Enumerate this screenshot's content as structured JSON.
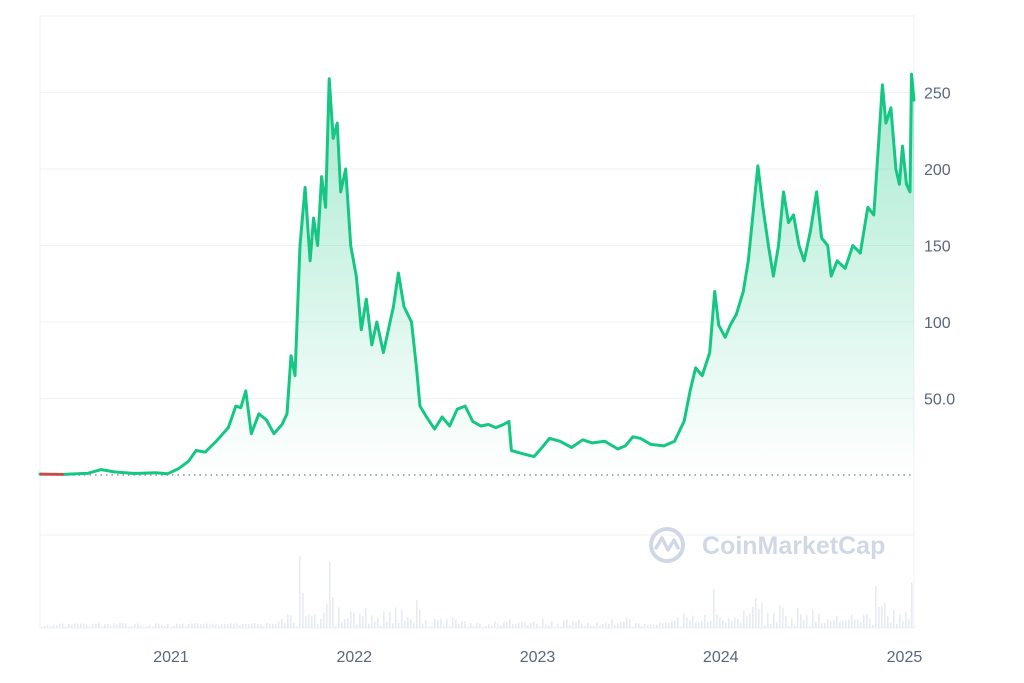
{
  "watermark": {
    "text": "CoinMarketCap"
  },
  "colors": {
    "line": "#16c784",
    "baseline_line": "#ea3943",
    "grid": "#eff2f5",
    "axis_text": "#58667e",
    "volume": "#e6ebf2",
    "watermark": "#cfd6e4"
  },
  "chart_data": {
    "type": "area",
    "x_format": "YYYY-MM-DD",
    "xlim": [
      "2020-04-15",
      "2025-01-20"
    ],
    "ylim": [
      -100,
      300
    ],
    "baseline": 0,
    "y_ticks": [
      {
        "value": 250,
        "label": "250"
      },
      {
        "value": 200,
        "label": "200"
      },
      {
        "value": 150,
        "label": "150"
      },
      {
        "value": 100,
        "label": "100"
      },
      {
        "value": 50,
        "label": "50.0"
      }
    ],
    "x_ticks": [
      {
        "date": "2021-01-01",
        "label": "2021"
      },
      {
        "date": "2022-01-01",
        "label": "2022"
      },
      {
        "date": "2023-01-01",
        "label": "2023"
      },
      {
        "date": "2024-01-01",
        "label": "2024"
      },
      {
        "date": "2025-01-01",
        "label": "2025"
      }
    ],
    "grid": true,
    "series": [
      {
        "points": [
          [
            "2020-04-15",
            0.6
          ],
          [
            "2020-06-01",
            0.4
          ],
          [
            "2020-07-20",
            1.2
          ],
          [
            "2020-08-15",
            3.5
          ],
          [
            "2020-09-10",
            2.0
          ],
          [
            "2020-10-20",
            1.0
          ],
          [
            "2020-12-01",
            1.5
          ],
          [
            "2020-12-25",
            0.8
          ],
          [
            "2021-01-15",
            4.0
          ],
          [
            "2021-02-05",
            9.0
          ],
          [
            "2021-02-20",
            16.0
          ],
          [
            "2021-03-10",
            15.0
          ],
          [
            "2021-04-01",
            22.0
          ],
          [
            "2021-04-25",
            31.0
          ],
          [
            "2021-05-10",
            45.0
          ],
          [
            "2021-05-20",
            44.0
          ],
          [
            "2021-05-30",
            55.0
          ],
          [
            "2021-06-10",
            27.0
          ],
          [
            "2021-06-25",
            40.0
          ],
          [
            "2021-07-10",
            36.0
          ],
          [
            "2021-07-25",
            27.0
          ],
          [
            "2021-08-10",
            33.0
          ],
          [
            "2021-08-20",
            40.0
          ],
          [
            "2021-08-28",
            78.0
          ],
          [
            "2021-09-05",
            65.0
          ],
          [
            "2021-09-15",
            150.0
          ],
          [
            "2021-09-25",
            188.0
          ],
          [
            "2021-10-05",
            140.0
          ],
          [
            "2021-10-12",
            168.0
          ],
          [
            "2021-10-20",
            150.0
          ],
          [
            "2021-10-28",
            195.0
          ],
          [
            "2021-11-05",
            175.0
          ],
          [
            "2021-11-12",
            259.0
          ],
          [
            "2021-11-20",
            220.0
          ],
          [
            "2021-11-28",
            230.0
          ],
          [
            "2021-12-05",
            185.0
          ],
          [
            "2021-12-15",
            200.0
          ],
          [
            "2021-12-25",
            150.0
          ],
          [
            "2022-01-05",
            130.0
          ],
          [
            "2022-01-15",
            95.0
          ],
          [
            "2022-01-25",
            115.0
          ],
          [
            "2022-02-05",
            85.0
          ],
          [
            "2022-02-15",
            100.0
          ],
          [
            "2022-02-28",
            80.0
          ],
          [
            "2022-03-10",
            95.0
          ],
          [
            "2022-03-20",
            110.0
          ],
          [
            "2022-03-30",
            132.0
          ],
          [
            "2022-04-10",
            110.0
          ],
          [
            "2022-04-25",
            100.0
          ],
          [
            "2022-05-05",
            70.0
          ],
          [
            "2022-05-12",
            45.0
          ],
          [
            "2022-05-25",
            38.0
          ],
          [
            "2022-06-10",
            30.0
          ],
          [
            "2022-06-25",
            38.0
          ],
          [
            "2022-07-10",
            32.0
          ],
          [
            "2022-07-25",
            43.0
          ],
          [
            "2022-08-10",
            45.0
          ],
          [
            "2022-08-25",
            35.0
          ],
          [
            "2022-09-10",
            32.0
          ],
          [
            "2022-09-25",
            33.0
          ],
          [
            "2022-10-10",
            31.0
          ],
          [
            "2022-10-25",
            33.0
          ],
          [
            "2022-11-05",
            35.0
          ],
          [
            "2022-11-10",
            16.0
          ],
          [
            "2022-12-01",
            14.0
          ],
          [
            "2022-12-25",
            12.0
          ],
          [
            "2023-01-10",
            18.0
          ],
          [
            "2023-01-25",
            24.0
          ],
          [
            "2023-02-15",
            22.0
          ],
          [
            "2023-03-10",
            18.0
          ],
          [
            "2023-04-01",
            23.0
          ],
          [
            "2023-04-20",
            21.0
          ],
          [
            "2023-05-15",
            22.0
          ],
          [
            "2023-06-10",
            17.0
          ],
          [
            "2023-06-25",
            19.0
          ],
          [
            "2023-07-10",
            25.0
          ],
          [
            "2023-07-25",
            24.0
          ],
          [
            "2023-08-15",
            20.0
          ],
          [
            "2023-09-10",
            19.0
          ],
          [
            "2023-10-01",
            22.0
          ],
          [
            "2023-10-20",
            35.0
          ],
          [
            "2023-11-01",
            55.0
          ],
          [
            "2023-11-12",
            70.0
          ],
          [
            "2023-11-25",
            65.0
          ],
          [
            "2023-12-10",
            80.0
          ],
          [
            "2023-12-20",
            120.0
          ],
          [
            "2023-12-28",
            98.0
          ],
          [
            "2024-01-10",
            90.0
          ],
          [
            "2024-01-20",
            98.0
          ],
          [
            "2024-02-01",
            105.0
          ],
          [
            "2024-02-15",
            120.0
          ],
          [
            "2024-02-25",
            140.0
          ],
          [
            "2024-03-05",
            170.0
          ],
          [
            "2024-03-15",
            202.0
          ],
          [
            "2024-03-25",
            175.0
          ],
          [
            "2024-04-05",
            150.0
          ],
          [
            "2024-04-15",
            130.0
          ],
          [
            "2024-04-25",
            150.0
          ],
          [
            "2024-05-05",
            185.0
          ],
          [
            "2024-05-15",
            165.0
          ],
          [
            "2024-05-25",
            170.0
          ],
          [
            "2024-06-05",
            150.0
          ],
          [
            "2024-06-15",
            140.0
          ],
          [
            "2024-06-28",
            160.0
          ],
          [
            "2024-07-10",
            185.0
          ],
          [
            "2024-07-20",
            155.0
          ],
          [
            "2024-08-01",
            150.0
          ],
          [
            "2024-08-08",
            130.0
          ],
          [
            "2024-08-20",
            140.0
          ],
          [
            "2024-09-05",
            135.0
          ],
          [
            "2024-09-20",
            150.0
          ],
          [
            "2024-10-05",
            145.0
          ],
          [
            "2024-10-20",
            175.0
          ],
          [
            "2024-11-01",
            170.0
          ],
          [
            "2024-11-10",
            215.0
          ],
          [
            "2024-11-18",
            255.0
          ],
          [
            "2024-11-25",
            230.0
          ],
          [
            "2024-12-05",
            240.0
          ],
          [
            "2024-12-15",
            200.0
          ],
          [
            "2024-12-22",
            190.0
          ],
          [
            "2024-12-28",
            215.0
          ],
          [
            "2025-01-05",
            190.0
          ],
          [
            "2025-01-12",
            185.0
          ],
          [
            "2025-01-15",
            262.0
          ],
          [
            "2025-01-20",
            245.0
          ]
        ]
      }
    ]
  }
}
